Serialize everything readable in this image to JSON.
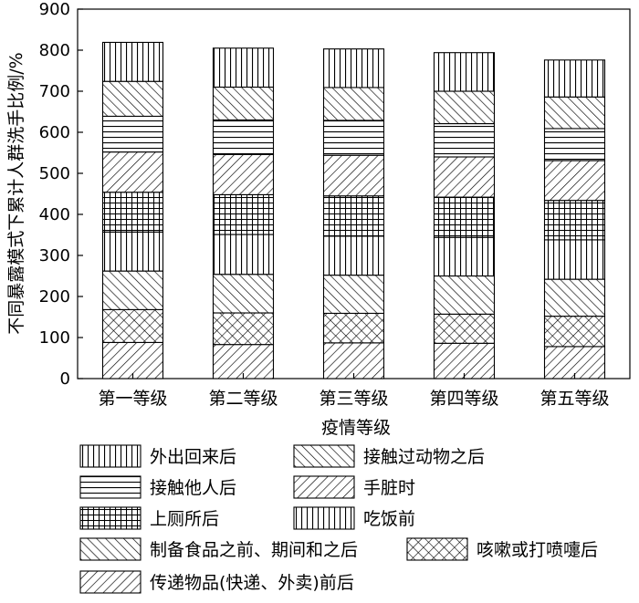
{
  "chart_data": {
    "type": "bar",
    "stacked": true,
    "categories": [
      "第一等级",
      "第二等级",
      "第三等级",
      "第四等级",
      "第五等级"
    ],
    "xlabel": "疫情等级",
    "ylabel": "不同暴露模式下累计人群洗手比例/%",
    "ylim": [
      0,
      900
    ],
    "yticks": [
      0,
      100,
      200,
      300,
      400,
      500,
      600,
      700,
      800,
      900
    ],
    "grid": false,
    "legend_position": "bottom",
    "series": [
      {
        "name": "传递物品(快递、外卖)前后",
        "pattern": "diag-right",
        "values": [
          88,
          83,
          87,
          86,
          78
        ]
      },
      {
        "name": "咳嗽或打喷嚏后",
        "pattern": "crosshatch",
        "values": [
          80,
          77,
          72,
          71,
          74
        ]
      },
      {
        "name": "制备食品之前、期间和之后",
        "pattern": "diag-left",
        "values": [
          94,
          94,
          93,
          93,
          90
        ]
      },
      {
        "name": "吃饭前",
        "pattern": "vertical",
        "values": [
          95,
          97,
          95,
          94,
          96
        ]
      },
      {
        "name": "上厕所后",
        "pattern": "grid",
        "values": [
          97,
          97,
          98,
          98,
          96
        ]
      },
      {
        "name": "手脏时",
        "pattern": "diag-right",
        "values": [
          98,
          98,
          99,
          98,
          97
        ]
      },
      {
        "name": "接触他人后",
        "pattern": "horizontal",
        "values": [
          87,
          84,
          85,
          81,
          78
        ]
      },
      {
        "name": "接触过动物之后",
        "pattern": "diag-left",
        "values": [
          85,
          80,
          80,
          79,
          77
        ]
      },
      {
        "name": "外出回来后",
        "pattern": "vertical",
        "values": [
          95,
          95,
          94,
          94,
          90
        ]
      }
    ],
    "legend_order": [
      8,
      7,
      6,
      5,
      4,
      3,
      2,
      1,
      0
    ]
  }
}
